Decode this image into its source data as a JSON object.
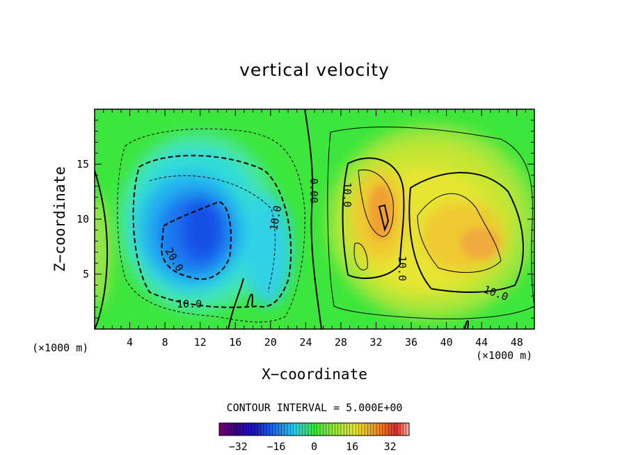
{
  "chart_data": {
    "type": "heatmap",
    "title": "vertical velocity",
    "xlabel": "X−coordinate",
    "ylabel": "Z−coordinate",
    "x_unit_left": "(×1000 m)",
    "x_unit_right": "(×1000 m)",
    "xlim": [
      0,
      50
    ],
    "ylim": [
      0,
      20
    ],
    "x_ticks": [
      "4",
      "8",
      "12",
      "16",
      "20",
      "24",
      "28",
      "32",
      "36",
      "40",
      "44",
      "48"
    ],
    "y_ticks": [
      "5",
      "10",
      "15"
    ],
    "contour_interval_text": "CONTOUR INTERVAL = 5.000E+00",
    "contour_labels": [
      "0.00",
      "10.0",
      "20.0",
      "10.0",
      "10.0",
      "10.0",
      "10.0"
    ],
    "colorbar": {
      "ticks": [
        "−32",
        "−16",
        "0",
        "16",
        "32"
      ],
      "range": [
        -40,
        40
      ]
    },
    "features": [
      {
        "kind": "downdraft",
        "x": 12,
        "z": 9,
        "peak": -30
      },
      {
        "kind": "updraft",
        "x": 32,
        "z": 11,
        "peak": 24
      },
      {
        "kind": "updraft",
        "x": 43,
        "z": 8,
        "peak": 20
      }
    ]
  }
}
